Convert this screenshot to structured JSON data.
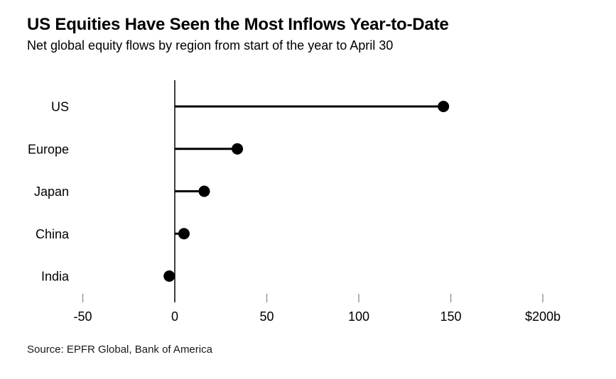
{
  "header": {
    "title": "US Equities Have Seen the Most Inflows Year-to-Date",
    "subtitle": "Net global equity flows by region from start of the year to April 30"
  },
  "chart_data": {
    "type": "bar",
    "variant": "horizontal-lollipop",
    "title": "US Equities Have Seen the Most Inflows Year-to-Date",
    "subtitle": "Net global equity flows by region from start of the year to April 30",
    "categories": [
      "US",
      "Europe",
      "Japan",
      "China",
      "India"
    ],
    "values": [
      146,
      34,
      16,
      5,
      -3
    ],
    "unit": "billions of US dollars",
    "xlabel": "",
    "ylabel": "",
    "xlim": [
      -50,
      200
    ],
    "x_ticks": [
      -50,
      0,
      50,
      100,
      150,
      200
    ],
    "x_tick_labels": [
      "-50",
      "0",
      "50",
      "100",
      "150",
      "$200b"
    ],
    "grid": false,
    "legend": false,
    "colors": {
      "dot": "#000000",
      "stem": "#000000",
      "axis": "#000000",
      "tick": "#9a9a9a",
      "text": "#000000",
      "background": "#ffffff"
    }
  },
  "footer": {
    "source": "Source: EPFR Global, Bank of America"
  }
}
